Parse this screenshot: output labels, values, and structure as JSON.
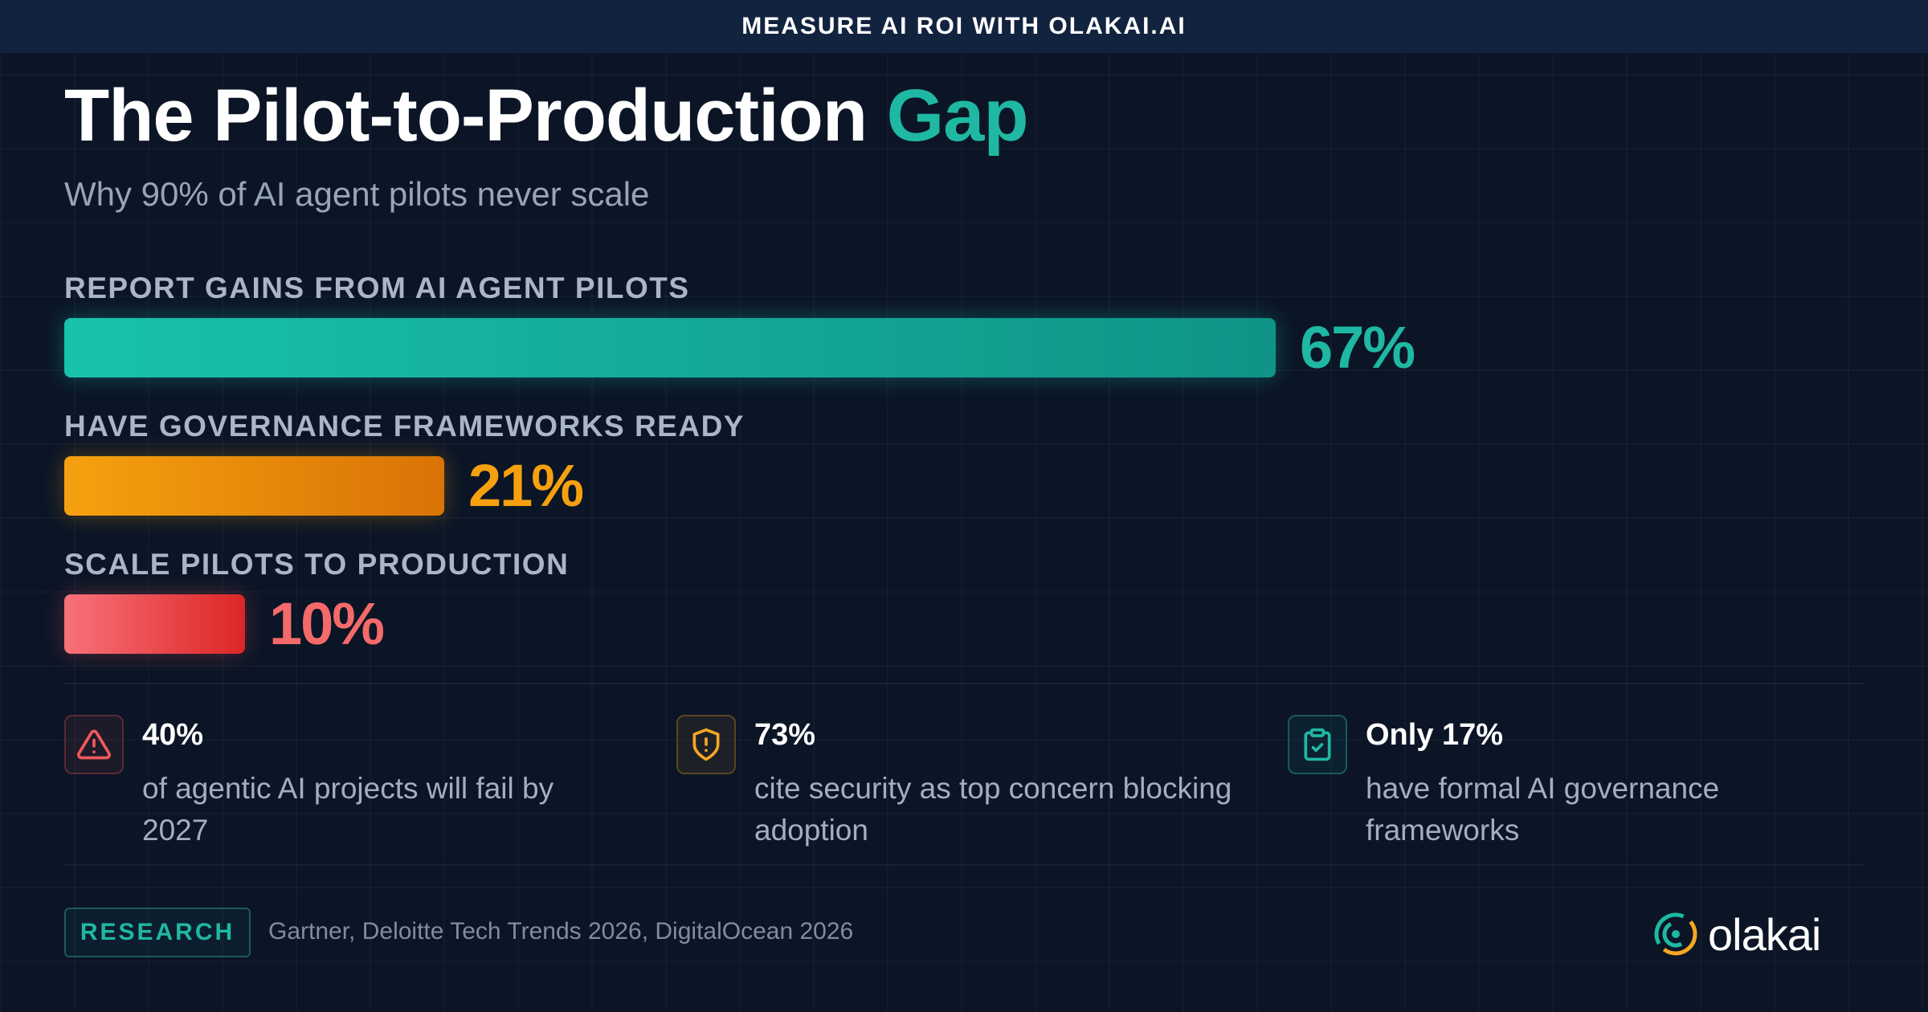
{
  "banner": "MEASURE AI ROI WITH OLAKAI.AI",
  "title_main": "The Pilot-to-Production",
  "title_accent": "Gap",
  "subtitle": "Why 90% of AI agent pilots never scale",
  "chart_data": {
    "type": "bar",
    "orientation": "horizontal",
    "xlim": [
      0,
      100
    ],
    "grid": false,
    "categories": [
      "REPORT GAINS FROM AI AGENT PILOTS",
      "HAVE GOVERNANCE FRAMEWORKS READY",
      "SCALE PILOTS TO PRODUCTION"
    ],
    "values": [
      67,
      21,
      10
    ],
    "value_labels": [
      "67%",
      "21%",
      "10%"
    ],
    "colors": [
      "#1cbfa8",
      "#f59e0b",
      "#f0565a"
    ]
  },
  "stats": [
    {
      "icon": "warning-triangle-icon",
      "value": "40%",
      "text": "of agentic AI projects will fail by 2027",
      "color": "#f05a5a"
    },
    {
      "icon": "shield-alert-icon",
      "value": "73%",
      "text": "cite security as top concern blocking adoption",
      "color": "#f5a623"
    },
    {
      "icon": "clipboard-check-icon",
      "value": "Only 17%",
      "text": "have formal AI governance frameworks",
      "color": "#1fb8a3"
    }
  ],
  "footer": {
    "badge": "RESEARCH",
    "sources": "Gartner, Deloitte Tech Trends 2026, DigitalOcean 2026",
    "brand": "olakai"
  }
}
